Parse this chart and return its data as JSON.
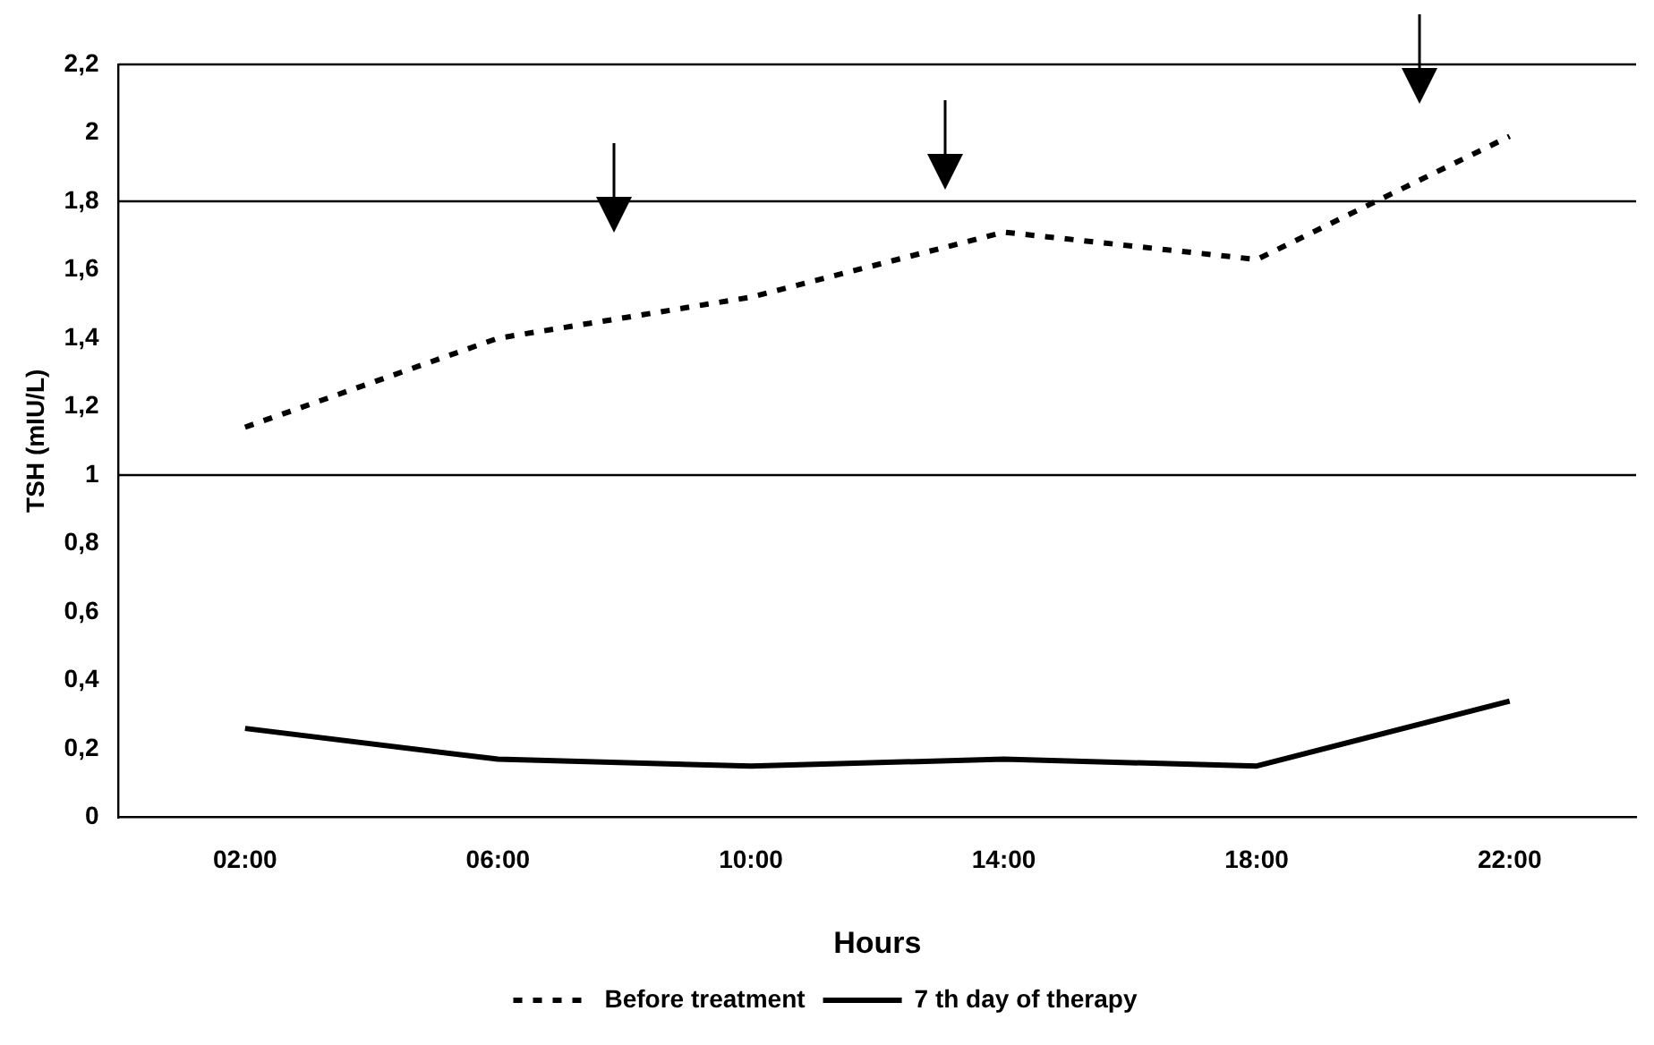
{
  "chart_data": {
    "type": "line",
    "xlabel": "Hours",
    "ylabel": "TSH (mIU/L)",
    "categories": [
      "02:00",
      "06:00",
      "10:00",
      "14:00",
      "18:00",
      "22:00"
    ],
    "series": [
      {
        "name": "Before treatment",
        "color": "#000000",
        "line_style": "dotted",
        "values": [
          1.14,
          1.4,
          1.52,
          1.71,
          1.63,
          1.99
        ]
      },
      {
        "name": "7 th day of therapy",
        "color": "#000000",
        "line_style": "solid",
        "values": [
          0.26,
          0.17,
          0.15,
          0.17,
          0.15,
          0.34
        ]
      }
    ],
    "ylim": [
      0,
      2.2
    ],
    "yticks": [
      0,
      {
        "value": 0.2,
        "label": "0,2"
      },
      {
        "value": 0.4,
        "label": "0,4"
      },
      {
        "value": 0.6,
        "label": "0,6"
      },
      {
        "value": 0.8,
        "label": "0,8"
      },
      1,
      {
        "value": 1.2,
        "label": "1,2"
      },
      {
        "value": 1.4,
        "label": "1,4"
      },
      {
        "value": 1.6,
        "label": "1,6"
      },
      {
        "value": 1.8,
        "label": "1,8"
      },
      2,
      {
        "value": 2.2,
        "label": "2,2"
      }
    ],
    "ref_lines": [
      {
        "axis": "y",
        "value": 1,
        "color": "#000000"
      },
      {
        "axis": "y",
        "value": 1.8,
        "color": "#000000"
      }
    ],
    "grid": false,
    "legend": "bottom",
    "marker": "none"
  }
}
